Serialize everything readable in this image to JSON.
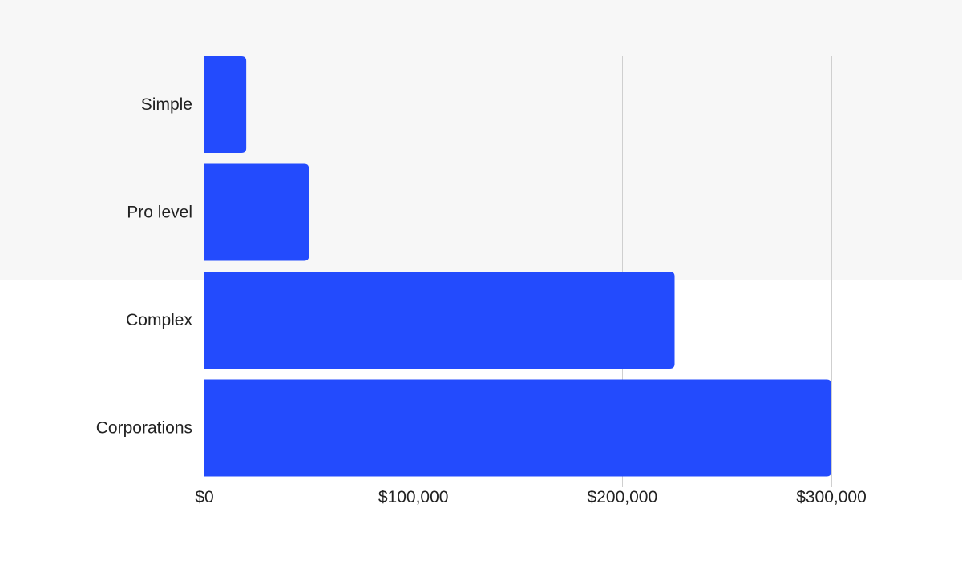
{
  "theme": {
    "bar_color": "#234bfd",
    "top_band_color": "#f7f7f7",
    "grid_color": "#cfcfcf",
    "text_color": "#222222"
  },
  "chart_data": {
    "type": "bar",
    "orientation": "horizontal",
    "categories": [
      "Simple",
      "Pro level",
      "Complex",
      "Corporations"
    ],
    "values": [
      20000,
      50000,
      225000,
      300000
    ],
    "xlim": [
      0,
      300000
    ],
    "x_ticks": [
      0,
      100000,
      200000,
      300000
    ],
    "x_tick_labels": [
      "$0",
      "$100,000",
      "$200,000",
      "$300,000"
    ],
    "grid": true,
    "title": "",
    "xlabel": "",
    "ylabel": ""
  }
}
